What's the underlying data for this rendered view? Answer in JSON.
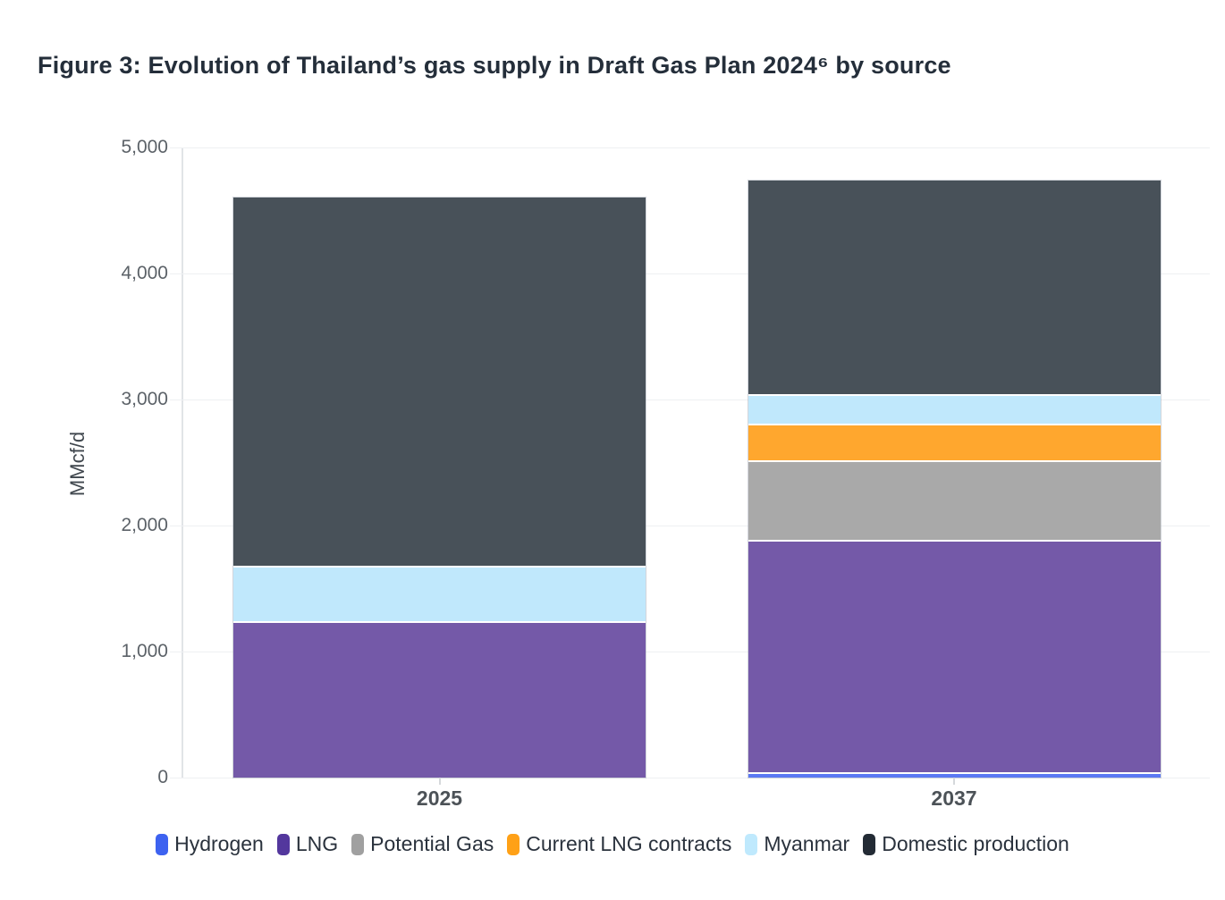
{
  "title": "Figure 3: Evolution of Thailand’s gas supply in Draft Gas Plan 2024⁶ by source",
  "chart_data": {
    "type": "bar",
    "stacked": true,
    "title": "Figure 3: Evolution of Thailand’s gas supply in Draft Gas Plan 2024⁶ by source",
    "categories": [
      "2025",
      "2037"
    ],
    "series": [
      {
        "name": "Hydrogen",
        "values": [
          0,
          40
        ],
        "legend_color": "#3d62f0",
        "bar_color": "#5b79f3"
      },
      {
        "name": "LNG",
        "values": [
          1240,
          1850
        ],
        "legend_color": "#53379d",
        "bar_color": "#7459a8"
      },
      {
        "name": "Potential Gas",
        "values": [
          0,
          630
        ],
        "legend_color": "#a0a0a0",
        "bar_color": "#a9a9a9"
      },
      {
        "name": "Current LNG contracts",
        "values": [
          0,
          290
        ],
        "legend_color": "#ffa117",
        "bar_color": "#ffa72e"
      },
      {
        "name": "Myanmar",
        "values": [
          440,
          230
        ],
        "legend_color": "#bfe9fd",
        "bar_color": "#c0e8fc"
      },
      {
        "name": "Domestic production",
        "values": [
          2920,
          1700
        ],
        "legend_color": "#232b35",
        "bar_color": "#485159"
      }
    ],
    "totals": [
      4600,
      4740
    ],
    "xlabel": "",
    "ylabel": "MMcf/d",
    "ylim": [
      0,
      5000
    ],
    "yticks": [
      0,
      1000,
      2000,
      3000,
      4000,
      5000
    ],
    "ytick_labels": [
      "0",
      "1,000",
      "2,000",
      "3,000",
      "4,000",
      "5,000"
    ],
    "grid": "horizontal",
    "legend_position": "bottom"
  }
}
